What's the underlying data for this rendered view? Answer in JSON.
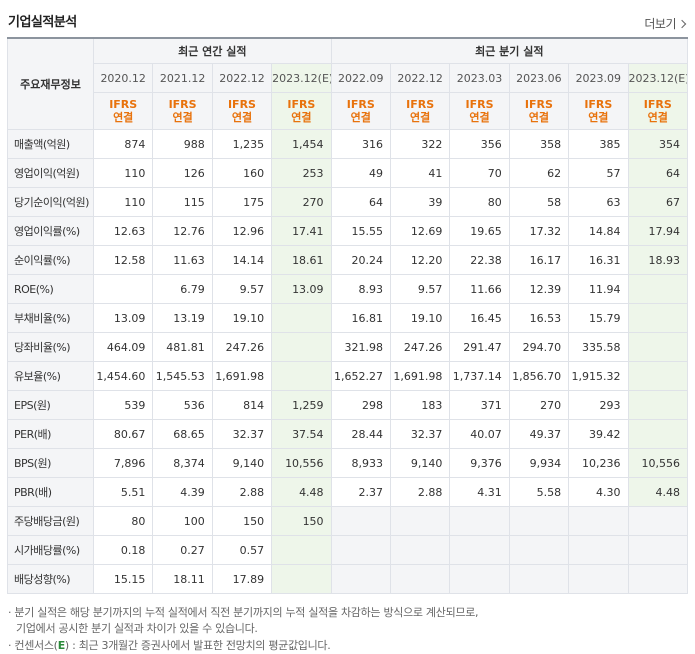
{
  "title": "기업실적분석",
  "more": "더보기",
  "header": {
    "corner": "주요재무정보",
    "annual_group": "최근 연간 실적",
    "quarter_group": "최근 분기 실적",
    "periods": [
      "2020.12",
      "2021.12",
      "2022.12",
      "2023.12(E)",
      "2022.09",
      "2022.12",
      "2023.03",
      "2023.06",
      "2023.09",
      "2023.12(E)"
    ],
    "ifrs_top": "IFRS",
    "ifrs_bottom": "연결"
  },
  "rows": [
    {
      "label": "매출액(억원)",
      "values": [
        "874",
        "988",
        "1,235",
        "1,454",
        "316",
        "322",
        "356",
        "358",
        "385",
        "354"
      ]
    },
    {
      "label": "영업이익(억원)",
      "values": [
        "110",
        "126",
        "160",
        "253",
        "49",
        "41",
        "70",
        "62",
        "57",
        "64"
      ]
    },
    {
      "label": "당기순이익(억원)",
      "values": [
        "110",
        "115",
        "175",
        "270",
        "64",
        "39",
        "80",
        "58",
        "63",
        "67"
      ]
    },
    {
      "label": "영업이익률(%)",
      "values": [
        "12.63",
        "12.76",
        "12.96",
        "17.41",
        "15.55",
        "12.69",
        "19.65",
        "17.32",
        "14.84",
        "17.94"
      ]
    },
    {
      "label": "순이익률(%)",
      "values": [
        "12.58",
        "11.63",
        "14.14",
        "18.61",
        "20.24",
        "12.20",
        "22.38",
        "16.17",
        "16.31",
        "18.93"
      ]
    },
    {
      "label": "ROE(%)",
      "values": [
        "",
        "6.79",
        "9.57",
        "13.09",
        "8.93",
        "9.57",
        "11.66",
        "12.39",
        "11.94",
        ""
      ]
    },
    {
      "label": "부채비율(%)",
      "values": [
        "13.09",
        "13.19",
        "19.10",
        "",
        "16.81",
        "19.10",
        "16.45",
        "16.53",
        "15.79",
        ""
      ]
    },
    {
      "label": "당좌비율(%)",
      "values": [
        "464.09",
        "481.81",
        "247.26",
        "",
        "321.98",
        "247.26",
        "291.47",
        "294.70",
        "335.58",
        ""
      ]
    },
    {
      "label": "유보율(%)",
      "values": [
        "1,454.60",
        "1,545.53",
        "1,691.98",
        "",
        "1,652.27",
        "1,691.98",
        "1,737.14",
        "1,856.70",
        "1,915.32",
        ""
      ]
    },
    {
      "label": "EPS(원)",
      "values": [
        "539",
        "536",
        "814",
        "1,259",
        "298",
        "183",
        "371",
        "270",
        "293",
        ""
      ]
    },
    {
      "label": "PER(배)",
      "values": [
        "80.67",
        "68.65",
        "32.37",
        "37.54",
        "28.44",
        "32.37",
        "40.07",
        "49.37",
        "39.42",
        ""
      ]
    },
    {
      "label": "BPS(원)",
      "values": [
        "7,896",
        "8,374",
        "9,140",
        "10,556",
        "8,933",
        "9,140",
        "9,376",
        "9,934",
        "10,236",
        "10,556"
      ]
    },
    {
      "label": "PBR(배)",
      "values": [
        "5.51",
        "4.39",
        "2.88",
        "4.48",
        "2.37",
        "2.88",
        "4.31",
        "5.58",
        "4.30",
        "4.48"
      ]
    },
    {
      "label": "주당배당금(원)",
      "values": [
        "80",
        "100",
        "150",
        "150",
        "",
        "",
        "",
        "",
        "",
        ""
      ]
    },
    {
      "label": "시가배당률(%)",
      "values": [
        "0.18",
        "0.27",
        "0.57",
        "",
        "",
        "",
        "",
        "",
        "",
        ""
      ]
    },
    {
      "label": "배당성향(%)",
      "values": [
        "15.15",
        "18.11",
        "17.89",
        "",
        "",
        "",
        "",
        "",
        "",
        ""
      ]
    }
  ],
  "footnotes": {
    "line1": "분기 실적은 해당 분기까지의 누적 실적에서 직전 분기까지의 누적 실적을 차감하는 방식으로 계산되므로,",
    "line2": "기업에서 공시한 분기 실적과 차이가 있을 수 있습니다.",
    "line3_prefix": "컨센서스(",
    "line3_e": "E",
    "line3_suffix": ") : 최근 3개월간 증권사에서 발표한 전망치의 평균값입니다."
  }
}
